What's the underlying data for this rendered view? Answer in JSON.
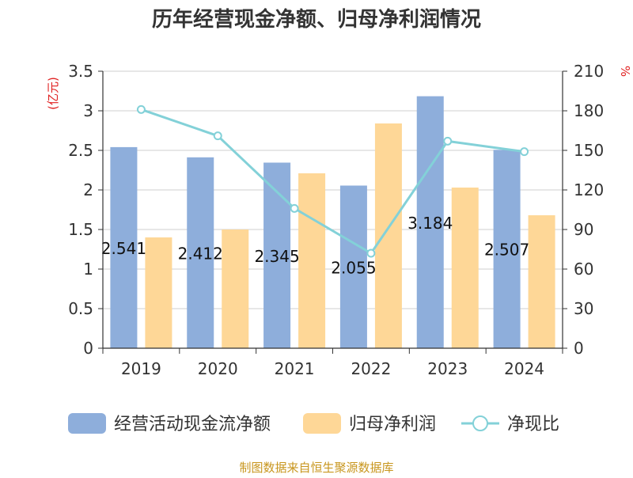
{
  "chart_data": {
    "type": "bar",
    "title": "历年经营现金净额、归母净利润情况",
    "categories": [
      "2019",
      "2020",
      "2021",
      "2022",
      "2023",
      "2024"
    ],
    "series": [
      {
        "name": "经营活动现金流净额",
        "type": "bar",
        "axis": "left",
        "color": "#8eaedb",
        "values": [
          2.541,
          2.412,
          2.345,
          2.055,
          3.184,
          2.507
        ],
        "labels": [
          "2.541",
          "2.412",
          "2.345",
          "2.055",
          "3.184",
          "2.507"
        ]
      },
      {
        "name": "归母净利润",
        "type": "bar",
        "axis": "left",
        "color": "#fed797",
        "values": [
          1.4,
          1.5,
          2.21,
          2.84,
          2.03,
          1.68
        ]
      },
      {
        "name": "净现比",
        "type": "line",
        "axis": "right",
        "color": "#83d1d8",
        "values": [
          181,
          161,
          106,
          72,
          157,
          149
        ]
      }
    ],
    "y_left": {
      "label": "(亿元)",
      "min": 0,
      "max": 3.5,
      "ticks": [
        "0",
        "0.5",
        "1",
        "1.5",
        "2",
        "2.5",
        "3",
        "3.5"
      ]
    },
    "y_right": {
      "label": "%",
      "min": 0,
      "max": 210,
      "ticks": [
        "0",
        "30",
        "60",
        "90",
        "120",
        "150",
        "180",
        "210"
      ]
    },
    "grid": true,
    "legend_position": "bottom"
  },
  "source": "制图数据来自恒生聚源数据库"
}
